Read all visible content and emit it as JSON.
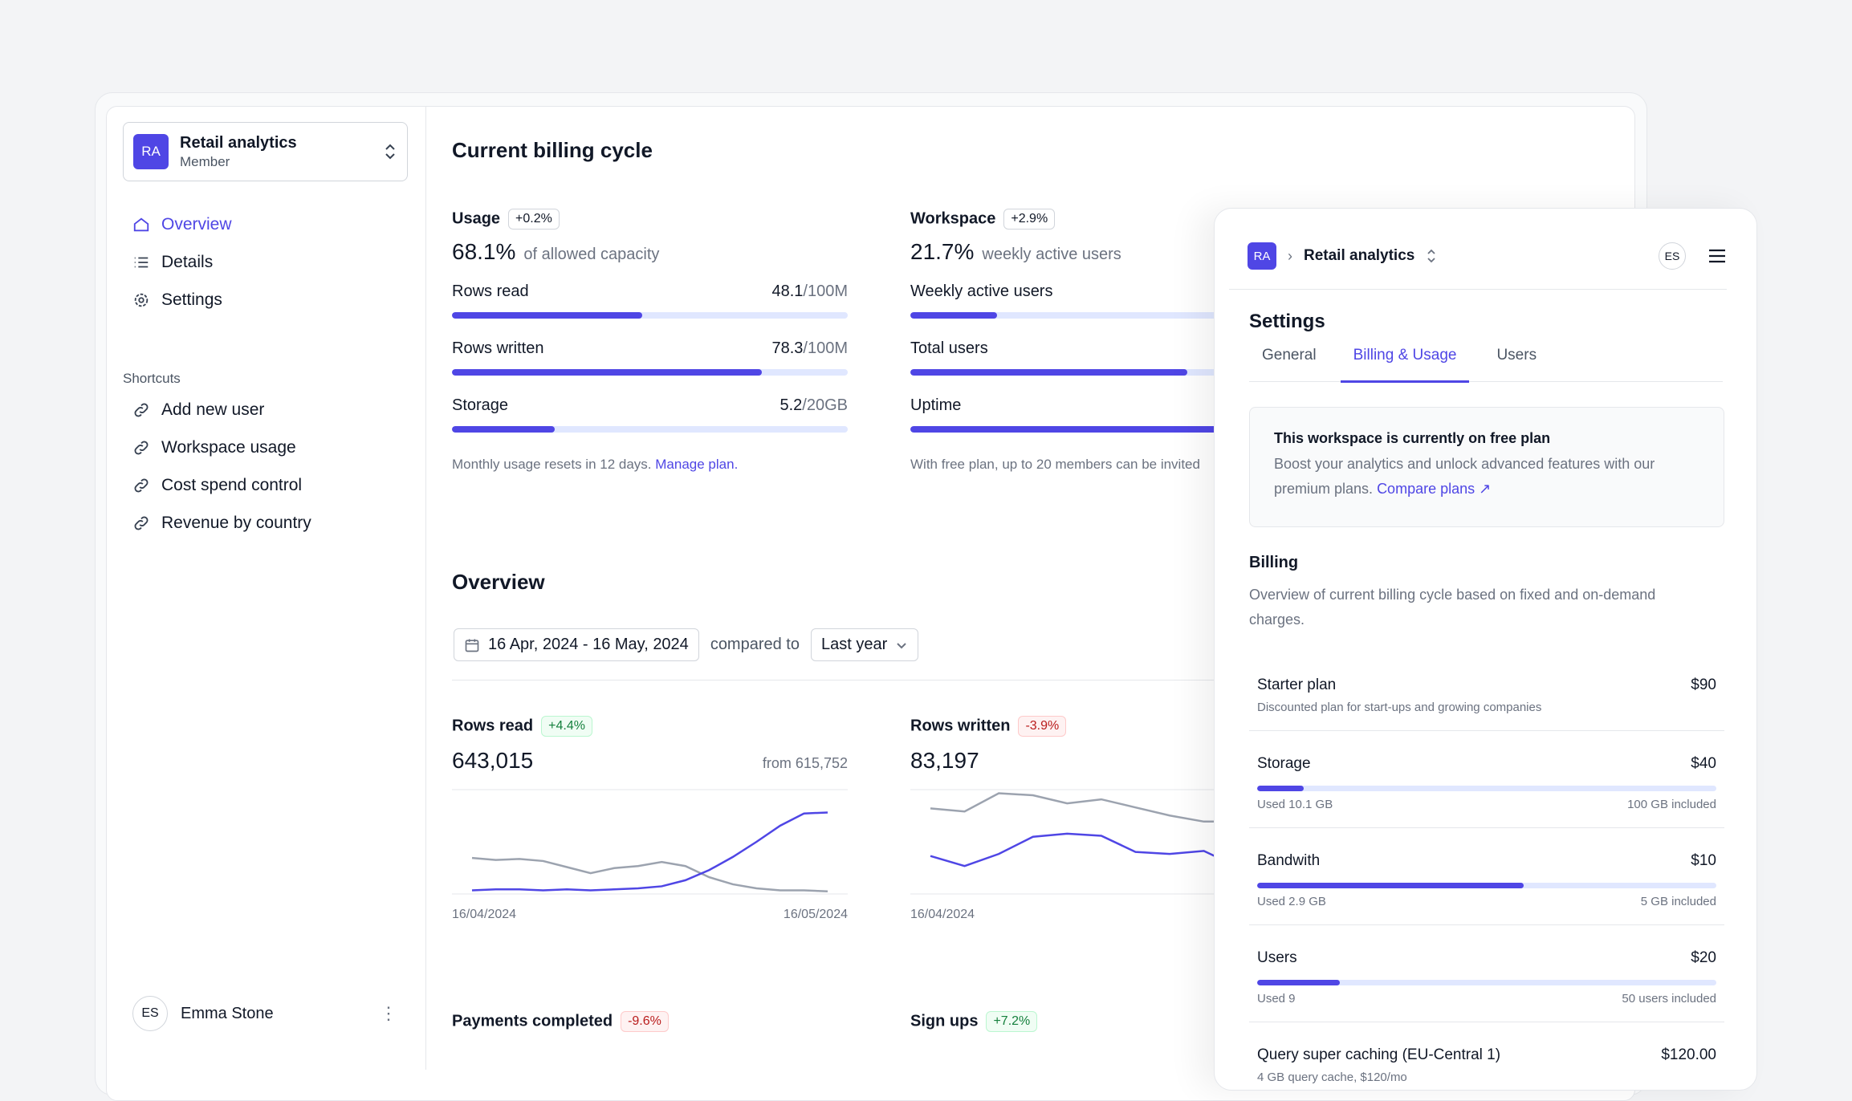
{
  "workspace": {
    "initials": "RA",
    "name": "Retail analytics",
    "role": "Member"
  },
  "nav": [
    {
      "label": "Overview",
      "icon": "home-icon",
      "active": true
    },
    {
      "label": "Details",
      "icon": "list-icon"
    },
    {
      "label": "Settings",
      "icon": "gear-icon"
    }
  ],
  "shortcuts": {
    "title": "Shortcuts",
    "items": [
      "Add new user",
      "Workspace usage",
      "Cost spend control",
      "Revenue by country"
    ]
  },
  "user": {
    "initials": "ES",
    "name": "Emma Stone"
  },
  "billing": {
    "title": "Current billing cycle",
    "usage": {
      "label": "Usage",
      "badge": "+0.2%",
      "value": "68.1%",
      "desc": "of allowed capacity",
      "rows": [
        {
          "label": "Rows read",
          "value": "48.1",
          "max": "/100M",
          "percent": 48.1
        },
        {
          "label": "Rows written",
          "value": "78.3",
          "max": "/100M",
          "percent": 78.3
        },
        {
          "label": "Storage",
          "value": "5.2",
          "max": "/20GB",
          "percent": 26
        }
      ],
      "note": "Monthly usage resets in 12 days.",
      "link": "Manage plan."
    },
    "workspace": {
      "label": "Workspace",
      "badge": "+2.9%",
      "value": "21.7%",
      "desc": "weekly active users",
      "rows": [
        {
          "label": "Weekly active users",
          "percent": 22
        },
        {
          "label": "Total users",
          "percent": 70
        },
        {
          "label": "Uptime",
          "percent": 100
        }
      ],
      "note": "With free plan, up to 20 members can be invited"
    }
  },
  "overview": {
    "title": "Overview",
    "date_range": "16 Apr, 2024 - 16 May, 2024",
    "compared_to": "compared to",
    "comparison": "Last year",
    "cards": [
      {
        "label": "Rows read",
        "badge": "+4.4%",
        "trend": "pos",
        "value": "643,015",
        "from": "from 615,752",
        "start": "16/04/2024",
        "end": "16/05/2024",
        "current": [
          2,
          3,
          3,
          2,
          3,
          2,
          3,
          4,
          6,
          12,
          22,
          35,
          50,
          66,
          78,
          79
        ],
        "previous": [
          34,
          32,
          33,
          31,
          25,
          19,
          24,
          26,
          30,
          26,
          15,
          8,
          4,
          2,
          2,
          1
        ]
      },
      {
        "label": "Rows written",
        "badge": "-3.9%",
        "trend": "neg",
        "value": "83,197",
        "start": "16/04/2024",
        "current": [
          36,
          26,
          38,
          55,
          58,
          56,
          40,
          38,
          41,
          25,
          20,
          38
        ],
        "previous": [
          83,
          80,
          98,
          96,
          88,
          92,
          84,
          76,
          70,
          70,
          60,
          58
        ]
      },
      {
        "label": "Payments completed",
        "badge": "-9.6%",
        "trend": "neg"
      },
      {
        "label": "Sign ups",
        "badge": "+7.2%",
        "trend": "pos"
      }
    ]
  },
  "panel": {
    "initials": "RA",
    "name": "Retail analytics",
    "user": "ES",
    "title": "Settings",
    "tabs": [
      "General",
      "Billing & Usage",
      "Users"
    ],
    "active_tab": 1,
    "callout": {
      "title": "This workspace is currently on free plan",
      "text": "Boost your analytics and unlock advanced features with our premium plans.",
      "link": "Compare plans"
    },
    "billing_title": "Billing",
    "billing_desc": "Overview of current billing cycle based on fixed and on-demand charges.",
    "items": [
      {
        "name": "Starter plan",
        "price": "$90",
        "desc": "Discounted plan for start-ups and growing companies"
      },
      {
        "name": "Storage",
        "price": "$40",
        "used": "Used 10.1 GB",
        "included": "100 GB included",
        "percent": 10.1
      },
      {
        "name": "Bandwith",
        "price": "$10",
        "used": "Used 2.9 GB",
        "included": "5 GB included",
        "percent": 58
      },
      {
        "name": "Users",
        "price": "$20",
        "used": "Used 9",
        "included": "50 users included",
        "percent": 18
      },
      {
        "name": "Query super caching (EU-Central 1)",
        "price": "$120.00",
        "desc": "4 GB query cache, $120/mo"
      }
    ]
  },
  "colors": {
    "accent": "#4f46e5",
    "track": "#e0e7ff",
    "previous_line": "#9ca3af"
  }
}
